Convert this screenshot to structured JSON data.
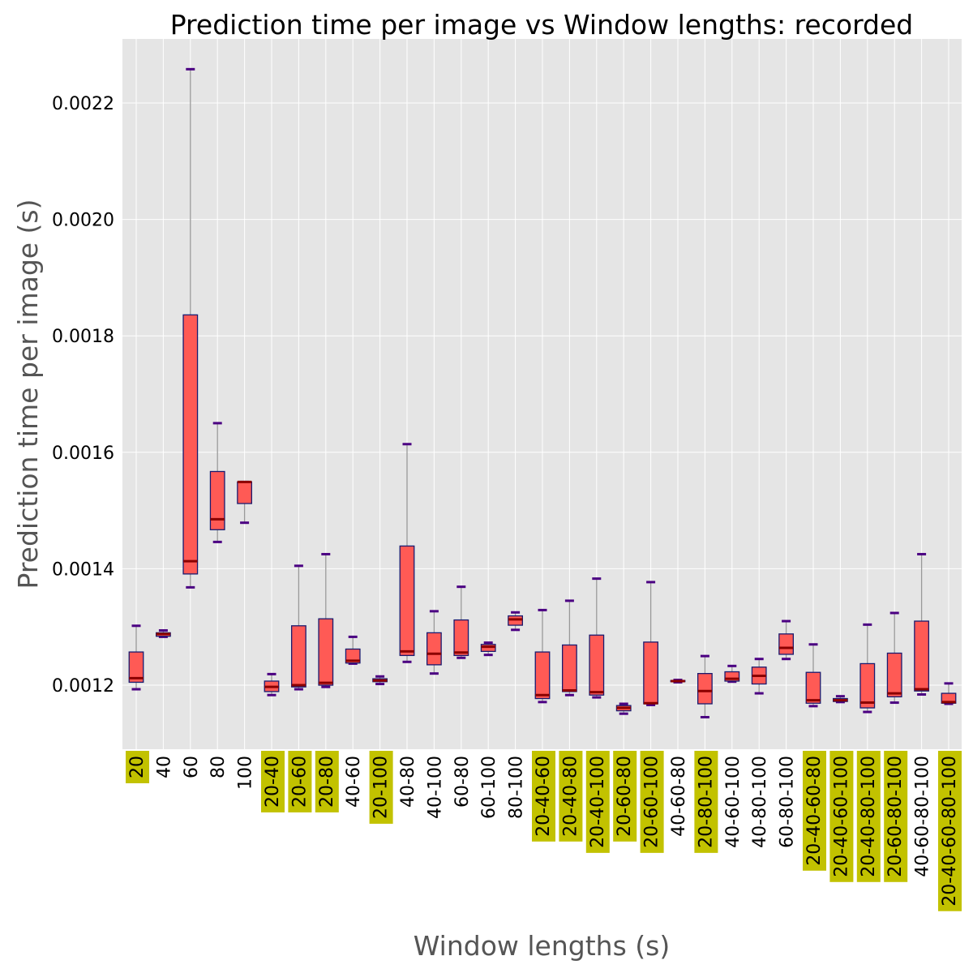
{
  "chart_data": {
    "type": "boxplot",
    "title": "Prediction time per image vs Window lengths: recorded",
    "xlabel": "Window lengths (s)",
    "ylabel": "Prediction time per image (s)",
    "ylim": [
      0.00109,
      0.00231
    ],
    "yticks": [
      {
        "value": 0.0012,
        "label": "0.0012"
      },
      {
        "value": 0.0014,
        "label": "0.0014"
      },
      {
        "value": 0.0016,
        "label": "0.0016"
      },
      {
        "value": 0.0018,
        "label": "0.0018"
      },
      {
        "value": 0.002,
        "label": "0.0020"
      },
      {
        "value": 0.0022,
        "label": "0.0022"
      }
    ],
    "grid": true,
    "colors": {
      "background": "#e5e5e5",
      "grid": "#ffffff",
      "box_fill": "#ff5a55",
      "box_edge": "#1a1a6e",
      "median": "#8b0000",
      "whisker": "#999999",
      "cap": "#4b0082",
      "highlight": "#c2c200"
    },
    "categories": [
      {
        "label": "20",
        "highlight": true,
        "whislo": 0.001193,
        "q1": 0.001205,
        "med": 0.001212,
        "q3": 0.001257,
        "whishi": 0.001302
      },
      {
        "label": "40",
        "highlight": false,
        "whislo": 0.001283,
        "q1": 0.001284,
        "med": 0.001288,
        "q3": 0.00129,
        "whishi": 0.001294
      },
      {
        "label": "60",
        "highlight": false,
        "whislo": 0.001368,
        "q1": 0.001391,
        "med": 0.001413,
        "q3": 0.001836,
        "whishi": 0.002258
      },
      {
        "label": "80",
        "highlight": false,
        "whislo": 0.001446,
        "q1": 0.001467,
        "med": 0.001485,
        "q3": 0.001567,
        "whishi": 0.00165
      },
      {
        "label": "100",
        "highlight": false,
        "whislo": 0.001479,
        "q1": 0.001512,
        "med": 0.001549,
        "q3": 0.001549,
        "whishi": 0.001549
      },
      {
        "label": "20-40",
        "highlight": true,
        "whislo": 0.001183,
        "q1": 0.001189,
        "med": 0.001197,
        "q3": 0.001207,
        "whishi": 0.001219
      },
      {
        "label": "20-60",
        "highlight": true,
        "whislo": 0.001193,
        "q1": 0.001197,
        "med": 0.0012,
        "q3": 0.001302,
        "whishi": 0.001405
      },
      {
        "label": "20-80",
        "highlight": true,
        "whislo": 0.001197,
        "q1": 0.0012,
        "med": 0.001204,
        "q3": 0.001314,
        "whishi": 0.001425
      },
      {
        "label": "40-60",
        "highlight": false,
        "whislo": 0.001237,
        "q1": 0.001238,
        "med": 0.001242,
        "q3": 0.001262,
        "whishi": 0.001283
      },
      {
        "label": "20-100",
        "highlight": true,
        "whislo": 0.001202,
        "q1": 0.001206,
        "med": 0.001208,
        "q3": 0.001211,
        "whishi": 0.001215
      },
      {
        "label": "40-80",
        "highlight": false,
        "whislo": 0.00124,
        "q1": 0.001251,
        "med": 0.001258,
        "q3": 0.001439,
        "whishi": 0.001614
      },
      {
        "label": "40-100",
        "highlight": false,
        "whislo": 0.00122,
        "q1": 0.001235,
        "med": 0.001254,
        "q3": 0.00129,
        "whishi": 0.001327
      },
      {
        "label": "60-80",
        "highlight": false,
        "whislo": 0.001247,
        "q1": 0.001251,
        "med": 0.001256,
        "q3": 0.001312,
        "whishi": 0.001369
      },
      {
        "label": "60-100",
        "highlight": false,
        "whislo": 0.001252,
        "q1": 0.001258,
        "med": 0.001266,
        "q3": 0.00127,
        "whishi": 0.001273
      },
      {
        "label": "80-100",
        "highlight": false,
        "whislo": 0.001295,
        "q1": 0.001303,
        "med": 0.001313,
        "q3": 0.001319,
        "whishi": 0.001325
      },
      {
        "label": "20-40-60",
        "highlight": true,
        "whislo": 0.001171,
        "q1": 0.001177,
        "med": 0.001183,
        "q3": 0.001257,
        "whishi": 0.001329
      },
      {
        "label": "20-40-80",
        "highlight": true,
        "whislo": 0.001183,
        "q1": 0.001189,
        "med": 0.001191,
        "q3": 0.001269,
        "whishi": 0.001345
      },
      {
        "label": "20-40-100",
        "highlight": true,
        "whislo": 0.001179,
        "q1": 0.001183,
        "med": 0.001188,
        "q3": 0.001286,
        "whishi": 0.001383
      },
      {
        "label": "20-60-80",
        "highlight": true,
        "whislo": 0.001151,
        "q1": 0.001156,
        "med": 0.001161,
        "q3": 0.001165,
        "whishi": 0.001168
      },
      {
        "label": "20-60-100",
        "highlight": true,
        "whislo": 0.001166,
        "q1": 0.001168,
        "med": 0.001169,
        "q3": 0.001274,
        "whishi": 0.001377
      },
      {
        "label": "40-60-80",
        "highlight": false,
        "whislo": 0.001205,
        "q1": 0.001206,
        "med": 0.001207,
        "q3": 0.001208,
        "whishi": 0.001209
      },
      {
        "label": "20-80-100",
        "highlight": true,
        "whislo": 0.001145,
        "q1": 0.001168,
        "med": 0.00119,
        "q3": 0.00122,
        "whishi": 0.00125
      },
      {
        "label": "40-60-100",
        "highlight": false,
        "whislo": 0.001206,
        "q1": 0.001207,
        "med": 0.001211,
        "q3": 0.001223,
        "whishi": 0.001233
      },
      {
        "label": "40-80-100",
        "highlight": false,
        "whislo": 0.001186,
        "q1": 0.001202,
        "med": 0.001216,
        "q3": 0.001231,
        "whishi": 0.001245
      },
      {
        "label": "60-80-100",
        "highlight": false,
        "whislo": 0.001245,
        "q1": 0.001253,
        "med": 0.001264,
        "q3": 0.001288,
        "whishi": 0.00131
      },
      {
        "label": "20-40-60-80",
        "highlight": true,
        "whislo": 0.001164,
        "q1": 0.001169,
        "med": 0.001174,
        "q3": 0.001222,
        "whishi": 0.00127
      },
      {
        "label": "20-40-60-100",
        "highlight": true,
        "whislo": 0.001171,
        "q1": 0.001172,
        "med": 0.001174,
        "q3": 0.001177,
        "whishi": 0.001181
      },
      {
        "label": "20-40-80-100",
        "highlight": true,
        "whislo": 0.001154,
        "q1": 0.001161,
        "med": 0.00117,
        "q3": 0.001237,
        "whishi": 0.001304
      },
      {
        "label": "20-60-80-100",
        "highlight": true,
        "whislo": 0.00117,
        "q1": 0.00118,
        "med": 0.001186,
        "q3": 0.001255,
        "whishi": 0.001324
      },
      {
        "label": "40-60-80-100",
        "highlight": false,
        "whislo": 0.001184,
        "q1": 0.00119,
        "med": 0.001193,
        "q3": 0.00131,
        "whishi": 0.001425
      },
      {
        "label": "20-40-60-80-100",
        "highlight": true,
        "whislo": 0.001168,
        "q1": 0.001169,
        "med": 0.001171,
        "q3": 0.001186,
        "whishi": 0.001203
      }
    ]
  }
}
